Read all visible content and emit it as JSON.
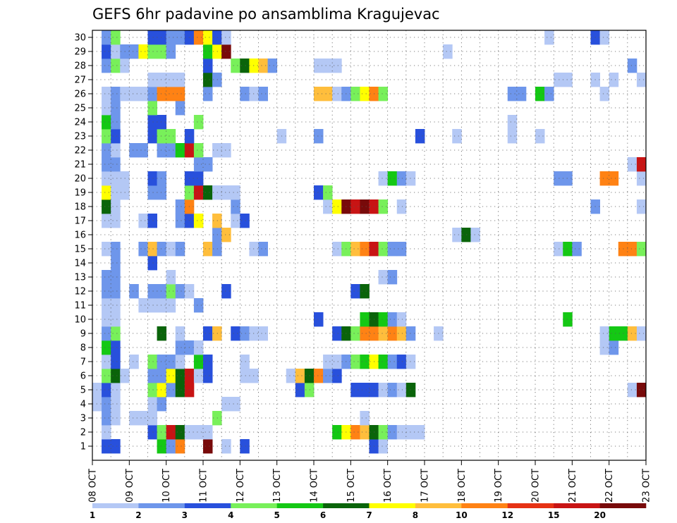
{
  "chart_data": {
    "type": "heatmap",
    "title": "GEFS 6hr padavine po ansamblima Kragujevac",
    "xlabel": "",
    "ylabel": "",
    "x_tick_labels": [
      "08 OCT",
      "09 OCT",
      "10 OCT",
      "11 OCT",
      "12 OCT",
      "13 OCT",
      "14 OCT",
      "15 OCT",
      "16 OCT",
      "17 OCT",
      "18 OCT",
      "19 OCT",
      "20 OCT",
      "21 OCT",
      "22 OCT",
      "23 OCT"
    ],
    "y_tick_labels": [
      "1",
      "2",
      "3",
      "4",
      "5",
      "6",
      "7",
      "8",
      "9",
      "10",
      "11",
      "12",
      "13",
      "14",
      "15",
      "16",
      "17",
      "18",
      "19",
      "20",
      "21",
      "22",
      "23",
      "24",
      "25",
      "26",
      "27",
      "28",
      "29",
      "30"
    ],
    "time_steps": 60,
    "members": 30,
    "grid": true,
    "legend_position": "bottom",
    "legend_levels": [
      "1",
      "2",
      "3",
      "4",
      "5",
      "6",
      "7",
      "8",
      "10",
      "12",
      "15",
      "20"
    ],
    "level_colors": [
      "#b4c8f5",
      "#6e96eb",
      "#2850dc",
      "#78f05a",
      "#14c814",
      "#0a640a",
      "#ffff00",
      "#ffbe3c",
      "#ff8214",
      "#e63214",
      "#c81414",
      "#780a0a"
    ],
    "cells": [
      [
        1,
        1,
        3
      ],
      [
        2,
        1,
        3
      ],
      [
        7,
        1,
        5
      ],
      [
        8,
        1,
        2
      ],
      [
        9,
        1,
        9
      ],
      [
        12,
        1,
        12
      ],
      [
        14,
        1,
        1
      ],
      [
        16,
        1,
        3
      ],
      [
        30,
        1,
        3
      ],
      [
        31,
        1,
        1
      ],
      [
        1,
        2,
        1
      ],
      [
        6,
        2,
        3
      ],
      [
        7,
        2,
        4
      ],
      [
        8,
        2,
        11
      ],
      [
        9,
        2,
        6
      ],
      [
        10,
        2,
        1
      ],
      [
        11,
        2,
        1
      ],
      [
        12,
        2,
        1
      ],
      [
        26,
        2,
        5
      ],
      [
        27,
        2,
        7
      ],
      [
        28,
        2,
        9
      ],
      [
        29,
        2,
        8
      ],
      [
        30,
        2,
        6
      ],
      [
        31,
        2,
        4
      ],
      [
        32,
        2,
        2
      ],
      [
        33,
        2,
        1
      ],
      [
        34,
        2,
        1
      ],
      [
        35,
        2,
        1
      ],
      [
        1,
        3,
        2
      ],
      [
        2,
        3,
        1
      ],
      [
        4,
        3,
        1
      ],
      [
        5,
        3,
        1
      ],
      [
        6,
        3,
        1
      ],
      [
        13,
        3,
        4
      ],
      [
        29,
        3,
        1
      ],
      [
        0,
        4,
        1
      ],
      [
        1,
        4,
        2
      ],
      [
        2,
        4,
        1
      ],
      [
        6,
        4,
        1
      ],
      [
        7,
        4,
        2
      ],
      [
        14,
        4,
        1
      ],
      [
        15,
        4,
        1
      ],
      [
        0,
        5,
        1
      ],
      [
        1,
        5,
        3
      ],
      [
        2,
        5,
        1
      ],
      [
        6,
        5,
        4
      ],
      [
        7,
        5,
        7
      ],
      [
        8,
        5,
        2
      ],
      [
        9,
        5,
        6
      ],
      [
        10,
        5,
        11
      ],
      [
        22,
        5,
        3
      ],
      [
        23,
        5,
        4
      ],
      [
        28,
        5,
        3
      ],
      [
        29,
        5,
        3
      ],
      [
        30,
        5,
        3
      ],
      [
        31,
        5,
        1
      ],
      [
        32,
        5,
        2
      ],
      [
        33,
        5,
        1
      ],
      [
        34,
        5,
        6
      ],
      [
        58,
        5,
        1
      ],
      [
        59,
        5,
        12
      ],
      [
        1,
        6,
        4
      ],
      [
        2,
        6,
        6
      ],
      [
        3,
        6,
        1
      ],
      [
        6,
        6,
        2
      ],
      [
        7,
        6,
        2
      ],
      [
        8,
        6,
        7
      ],
      [
        9,
        6,
        6
      ],
      [
        10,
        6,
        11
      ],
      [
        11,
        6,
        1
      ],
      [
        12,
        6,
        3
      ],
      [
        16,
        6,
        1
      ],
      [
        17,
        6,
        1
      ],
      [
        21,
        6,
        1
      ],
      [
        22,
        6,
        8
      ],
      [
        23,
        6,
        6
      ],
      [
        24,
        6,
        9
      ],
      [
        25,
        6,
        2
      ],
      [
        26,
        6,
        3
      ],
      [
        1,
        7,
        1
      ],
      [
        2,
        7,
        3
      ],
      [
        4,
        7,
        1
      ],
      [
        6,
        7,
        4
      ],
      [
        7,
        7,
        2
      ],
      [
        8,
        7,
        2
      ],
      [
        9,
        7,
        1
      ],
      [
        11,
        7,
        5
      ],
      [
        12,
        7,
        3
      ],
      [
        16,
        7,
        1
      ],
      [
        25,
        7,
        1
      ],
      [
        26,
        7,
        1
      ],
      [
        27,
        7,
        2
      ],
      [
        28,
        7,
        4
      ],
      [
        29,
        7,
        5
      ],
      [
        30,
        7,
        7
      ],
      [
        31,
        7,
        5
      ],
      [
        32,
        7,
        2
      ],
      [
        33,
        7,
        3
      ],
      [
        34,
        7,
        1
      ],
      [
        1,
        8,
        5
      ],
      [
        2,
        8,
        3
      ],
      [
        9,
        8,
        2
      ],
      [
        10,
        8,
        2
      ],
      [
        11,
        8,
        1
      ],
      [
        55,
        8,
        1
      ],
      [
        56,
        8,
        2
      ],
      [
        1,
        9,
        2
      ],
      [
        2,
        9,
        4
      ],
      [
        7,
        9,
        6
      ],
      [
        9,
        9,
        1
      ],
      [
        12,
        9,
        3
      ],
      [
        13,
        9,
        8
      ],
      [
        15,
        9,
        3
      ],
      [
        16,
        9,
        2
      ],
      [
        17,
        9,
        1
      ],
      [
        18,
        9,
        1
      ],
      [
        26,
        9,
        3
      ],
      [
        27,
        9,
        6
      ],
      [
        28,
        9,
        4
      ],
      [
        29,
        9,
        9
      ],
      [
        30,
        9,
        9
      ],
      [
        31,
        9,
        8
      ],
      [
        32,
        9,
        9
      ],
      [
        33,
        9,
        8
      ],
      [
        34,
        9,
        2
      ],
      [
        37,
        9,
        1
      ],
      [
        55,
        9,
        1
      ],
      [
        56,
        9,
        5
      ],
      [
        57,
        9,
        5
      ],
      [
        58,
        9,
        8
      ],
      [
        59,
        9,
        1
      ],
      [
        1,
        10,
        1
      ],
      [
        2,
        10,
        1
      ],
      [
        24,
        10,
        3
      ],
      [
        29,
        10,
        5
      ],
      [
        30,
        10,
        6
      ],
      [
        31,
        10,
        5
      ],
      [
        32,
        10,
        2
      ],
      [
        33,
        10,
        1
      ],
      [
        51,
        10,
        5
      ],
      [
        1,
        11,
        1
      ],
      [
        2,
        11,
        1
      ],
      [
        5,
        11,
        1
      ],
      [
        6,
        11,
        1
      ],
      [
        7,
        11,
        1
      ],
      [
        8,
        11,
        1
      ],
      [
        11,
        11,
        2
      ],
      [
        1,
        12,
        2
      ],
      [
        2,
        12,
        2
      ],
      [
        4,
        12,
        2
      ],
      [
        6,
        12,
        2
      ],
      [
        7,
        12,
        2
      ],
      [
        8,
        12,
        4
      ],
      [
        9,
        12,
        2
      ],
      [
        10,
        12,
        1
      ],
      [
        14,
        12,
        3
      ],
      [
        28,
        12,
        3
      ],
      [
        29,
        12,
        6
      ],
      [
        1,
        13,
        2
      ],
      [
        2,
        13,
        2
      ],
      [
        8,
        13,
        1
      ],
      [
        31,
        13,
        1
      ],
      [
        32,
        13,
        2
      ],
      [
        2,
        14,
        2
      ],
      [
        6,
        14,
        3
      ],
      [
        1,
        15,
        1
      ],
      [
        2,
        15,
        2
      ],
      [
        5,
        15,
        2
      ],
      [
        6,
        15,
        8
      ],
      [
        7,
        15,
        2
      ],
      [
        8,
        15,
        1
      ],
      [
        9,
        15,
        2
      ],
      [
        12,
        15,
        8
      ],
      [
        13,
        15,
        2
      ],
      [
        17,
        15,
        1
      ],
      [
        18,
        15,
        2
      ],
      [
        26,
        15,
        1
      ],
      [
        27,
        15,
        4
      ],
      [
        28,
        15,
        8
      ],
      [
        29,
        15,
        9
      ],
      [
        30,
        15,
        11
      ],
      [
        31,
        15,
        4
      ],
      [
        32,
        15,
        2
      ],
      [
        33,
        15,
        2
      ],
      [
        50,
        15,
        1
      ],
      [
        51,
        15,
        5
      ],
      [
        52,
        15,
        2
      ],
      [
        57,
        15,
        9
      ],
      [
        58,
        15,
        9
      ],
      [
        59,
        15,
        4
      ],
      [
        13,
        16,
        2
      ],
      [
        14,
        16,
        8
      ],
      [
        39,
        16,
        1
      ],
      [
        40,
        16,
        6
      ],
      [
        41,
        16,
        1
      ],
      [
        1,
        17,
        1
      ],
      [
        2,
        17,
        1
      ],
      [
        5,
        17,
        1
      ],
      [
        6,
        17,
        3
      ],
      [
        9,
        17,
        2
      ],
      [
        10,
        17,
        3
      ],
      [
        11,
        17,
        7
      ],
      [
        13,
        17,
        8
      ],
      [
        15,
        17,
        1
      ],
      [
        16,
        17,
        3
      ],
      [
        1,
        18,
        6
      ],
      [
        2,
        18,
        1
      ],
      [
        9,
        18,
        2
      ],
      [
        10,
        18,
        9
      ],
      [
        15,
        18,
        2
      ],
      [
        25,
        18,
        1
      ],
      [
        26,
        18,
        7
      ],
      [
        27,
        18,
        12
      ],
      [
        28,
        18,
        11
      ],
      [
        29,
        18,
        12
      ],
      [
        30,
        18,
        11
      ],
      [
        31,
        18,
        4
      ],
      [
        33,
        18,
        1
      ],
      [
        54,
        18,
        2
      ],
      [
        59,
        18,
        1
      ],
      [
        1,
        19,
        7
      ],
      [
        2,
        19,
        1
      ],
      [
        3,
        19,
        1
      ],
      [
        6,
        19,
        2
      ],
      [
        7,
        19,
        2
      ],
      [
        10,
        19,
        4
      ],
      [
        11,
        19,
        11
      ],
      [
        12,
        19,
        6
      ],
      [
        13,
        19,
        1
      ],
      [
        14,
        19,
        1
      ],
      [
        15,
        19,
        1
      ],
      [
        24,
        19,
        3
      ],
      [
        25,
        19,
        4
      ],
      [
        1,
        20,
        1
      ],
      [
        2,
        20,
        1
      ],
      [
        3,
        20,
        1
      ],
      [
        6,
        20,
        3
      ],
      [
        7,
        20,
        2
      ],
      [
        10,
        20,
        3
      ],
      [
        11,
        20,
        3
      ],
      [
        31,
        20,
        1
      ],
      [
        32,
        20,
        5
      ],
      [
        33,
        20,
        2
      ],
      [
        34,
        20,
        1
      ],
      [
        50,
        20,
        2
      ],
      [
        51,
        20,
        2
      ],
      [
        55,
        20,
        9
      ],
      [
        56,
        20,
        9
      ],
      [
        59,
        20,
        1
      ],
      [
        1,
        21,
        2
      ],
      [
        2,
        21,
        2
      ],
      [
        11,
        21,
        2
      ],
      [
        12,
        21,
        2
      ],
      [
        58,
        21,
        1
      ],
      [
        59,
        21,
        11
      ],
      [
        1,
        22,
        2
      ],
      [
        2,
        22,
        1
      ],
      [
        4,
        22,
        2
      ],
      [
        5,
        22,
        2
      ],
      [
        7,
        22,
        2
      ],
      [
        8,
        22,
        2
      ],
      [
        9,
        22,
        5
      ],
      [
        10,
        22,
        11
      ],
      [
        11,
        22,
        4
      ],
      [
        13,
        22,
        1
      ],
      [
        14,
        22,
        1
      ],
      [
        1,
        23,
        4
      ],
      [
        2,
        23,
        3
      ],
      [
        6,
        23,
        3
      ],
      [
        7,
        23,
        4
      ],
      [
        8,
        23,
        4
      ],
      [
        10,
        23,
        3
      ],
      [
        20,
        23,
        1
      ],
      [
        24,
        23,
        2
      ],
      [
        35,
        23,
        3
      ],
      [
        39,
        23,
        1
      ],
      [
        45,
        23,
        1
      ],
      [
        48,
        23,
        1
      ],
      [
        1,
        24,
        5
      ],
      [
        2,
        24,
        2
      ],
      [
        6,
        24,
        3
      ],
      [
        7,
        24,
        3
      ],
      [
        11,
        24,
        4
      ],
      [
        45,
        24,
        1
      ],
      [
        1,
        25,
        1
      ],
      [
        2,
        25,
        2
      ],
      [
        6,
        25,
        4
      ],
      [
        9,
        25,
        2
      ],
      [
        1,
        26,
        1
      ],
      [
        2,
        26,
        2
      ],
      [
        3,
        26,
        1
      ],
      [
        4,
        26,
        1
      ],
      [
        5,
        26,
        1
      ],
      [
        6,
        26,
        2
      ],
      [
        7,
        26,
        9
      ],
      [
        8,
        26,
        9
      ],
      [
        9,
        26,
        9
      ],
      [
        12,
        26,
        2
      ],
      [
        16,
        26,
        2
      ],
      [
        17,
        26,
        1
      ],
      [
        18,
        26,
        2
      ],
      [
        24,
        26,
        8
      ],
      [
        25,
        26,
        8
      ],
      [
        26,
        26,
        1
      ],
      [
        27,
        26,
        2
      ],
      [
        28,
        26,
        4
      ],
      [
        29,
        26,
        7
      ],
      [
        30,
        26,
        9
      ],
      [
        31,
        26,
        4
      ],
      [
        45,
        26,
        2
      ],
      [
        46,
        26,
        2
      ],
      [
        48,
        26,
        5
      ],
      [
        49,
        26,
        2
      ],
      [
        55,
        26,
        1
      ],
      [
        6,
        27,
        1
      ],
      [
        7,
        27,
        1
      ],
      [
        8,
        27,
        1
      ],
      [
        9,
        27,
        1
      ],
      [
        12,
        27,
        6
      ],
      [
        13,
        27,
        2
      ],
      [
        50,
        27,
        1
      ],
      [
        51,
        27,
        1
      ],
      [
        54,
        27,
        1
      ],
      [
        56,
        27,
        1
      ],
      [
        59,
        27,
        1
      ],
      [
        1,
        28,
        2
      ],
      [
        2,
        28,
        4
      ],
      [
        3,
        28,
        1
      ],
      [
        12,
        28,
        3
      ],
      [
        15,
        28,
        4
      ],
      [
        16,
        28,
        6
      ],
      [
        17,
        28,
        7
      ],
      [
        18,
        28,
        8
      ],
      [
        19,
        28,
        2
      ],
      [
        24,
        28,
        1
      ],
      [
        25,
        28,
        1
      ],
      [
        26,
        28,
        1
      ],
      [
        58,
        28,
        2
      ],
      [
        1,
        29,
        3
      ],
      [
        2,
        29,
        1
      ],
      [
        3,
        29,
        2
      ],
      [
        4,
        29,
        2
      ],
      [
        5,
        29,
        7
      ],
      [
        6,
        29,
        4
      ],
      [
        7,
        29,
        4
      ],
      [
        8,
        29,
        2
      ],
      [
        12,
        29,
        5
      ],
      [
        13,
        29,
        7
      ],
      [
        14,
        29,
        12
      ],
      [
        38,
        29,
        1
      ],
      [
        1,
        30,
        2
      ],
      [
        2,
        30,
        4
      ],
      [
        6,
        30,
        3
      ],
      [
        7,
        30,
        3
      ],
      [
        8,
        30,
        2
      ],
      [
        9,
        30,
        2
      ],
      [
        10,
        30,
        3
      ],
      [
        11,
        30,
        9
      ],
      [
        12,
        30,
        7
      ],
      [
        13,
        30,
        3
      ],
      [
        14,
        30,
        1
      ],
      [
        49,
        30,
        1
      ],
      [
        54,
        30,
        3
      ],
      [
        55,
        30,
        1
      ]
    ]
  }
}
